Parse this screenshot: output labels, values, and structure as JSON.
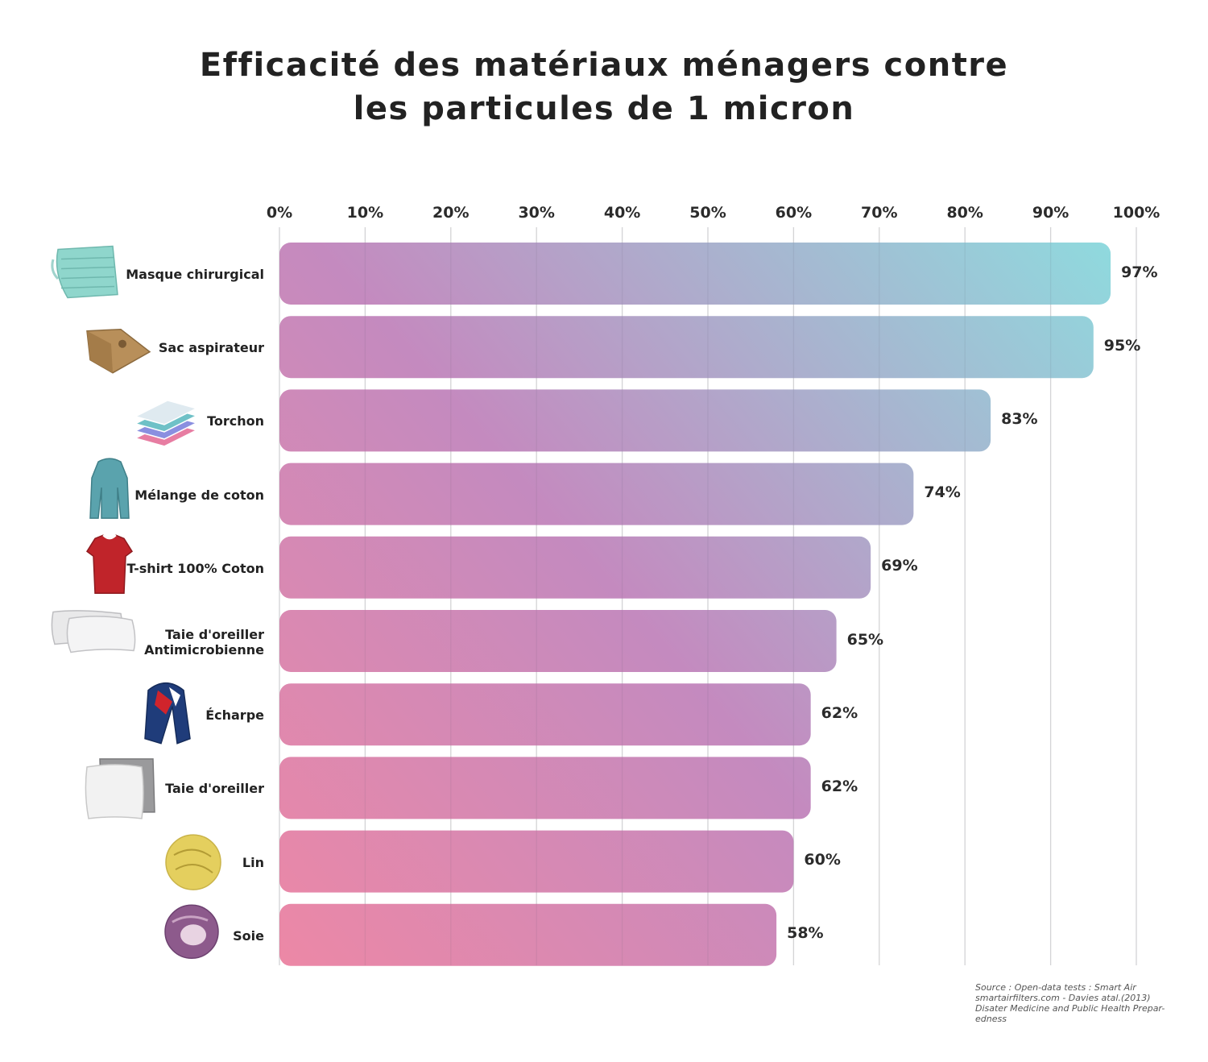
{
  "title_lines": [
    "Efficacité des matériaux ménagers contre",
    "les particules de 1 micron"
  ],
  "source_lines": [
    "Source :  Open-data tests : Smart Air",
    "smartairfilters.com - Davies atal.(2013)",
    "Disater Medicine and Public Health Prepar-",
    "edness"
  ],
  "colors": {
    "gradient_start": "#ec88a6",
    "gradient_mid": "#c48abf",
    "gradient_end": "#8fdade",
    "gridline": "#e2e2e2",
    "text": "#222222"
  },
  "chart_data": {
    "type": "bar",
    "orientation": "horizontal",
    "title": "Efficacité des matériaux ménagers contre les particules de 1 micron",
    "xlim": [
      0,
      100
    ],
    "x_ticks": [
      "0%",
      "10%",
      "20%",
      "30%",
      "40%",
      "50%",
      "60%",
      "70%",
      "80%",
      "90%",
      "100%"
    ],
    "grid": "vertical",
    "categories": [
      "Masque chirurgical",
      "Sac aspirateur",
      "Torchon",
      "Mélange de coton",
      "T-shirt 100% Coton",
      "Taie d'oreiller Antimicrobienne",
      "Écharpe",
      "Taie d'oreiller",
      "Lin",
      "Soie"
    ],
    "category_label_lines": [
      [
        "Masque chirurgical"
      ],
      [
        "Sac aspirateur"
      ],
      [
        "Torchon"
      ],
      [
        "Mélange de coton"
      ],
      [
        "T-shirt 100% Coton"
      ],
      [
        "Taie d'oreiller",
        "Antimicrobienne"
      ],
      [
        "Écharpe"
      ],
      [
        "Taie d'oreiller"
      ],
      [
        "Lin"
      ],
      [
        "Soie"
      ]
    ],
    "icons": [
      "surgical-mask-icon",
      "vacuum-bag-icon",
      "dish-towel-icon",
      "cotton-hoodie-icon",
      "tshirt-icon",
      "pillows-icon",
      "scarf-icon",
      "pillowcase-icon",
      "linen-icon",
      "silk-icon"
    ],
    "values": [
      97,
      95,
      83,
      74,
      69,
      65,
      62,
      62,
      60,
      58
    ],
    "value_labels": [
      "97%",
      "95%",
      "83%",
      "74%",
      "69%",
      "65%",
      "62%",
      "62%",
      "60%",
      "58%"
    ]
  }
}
